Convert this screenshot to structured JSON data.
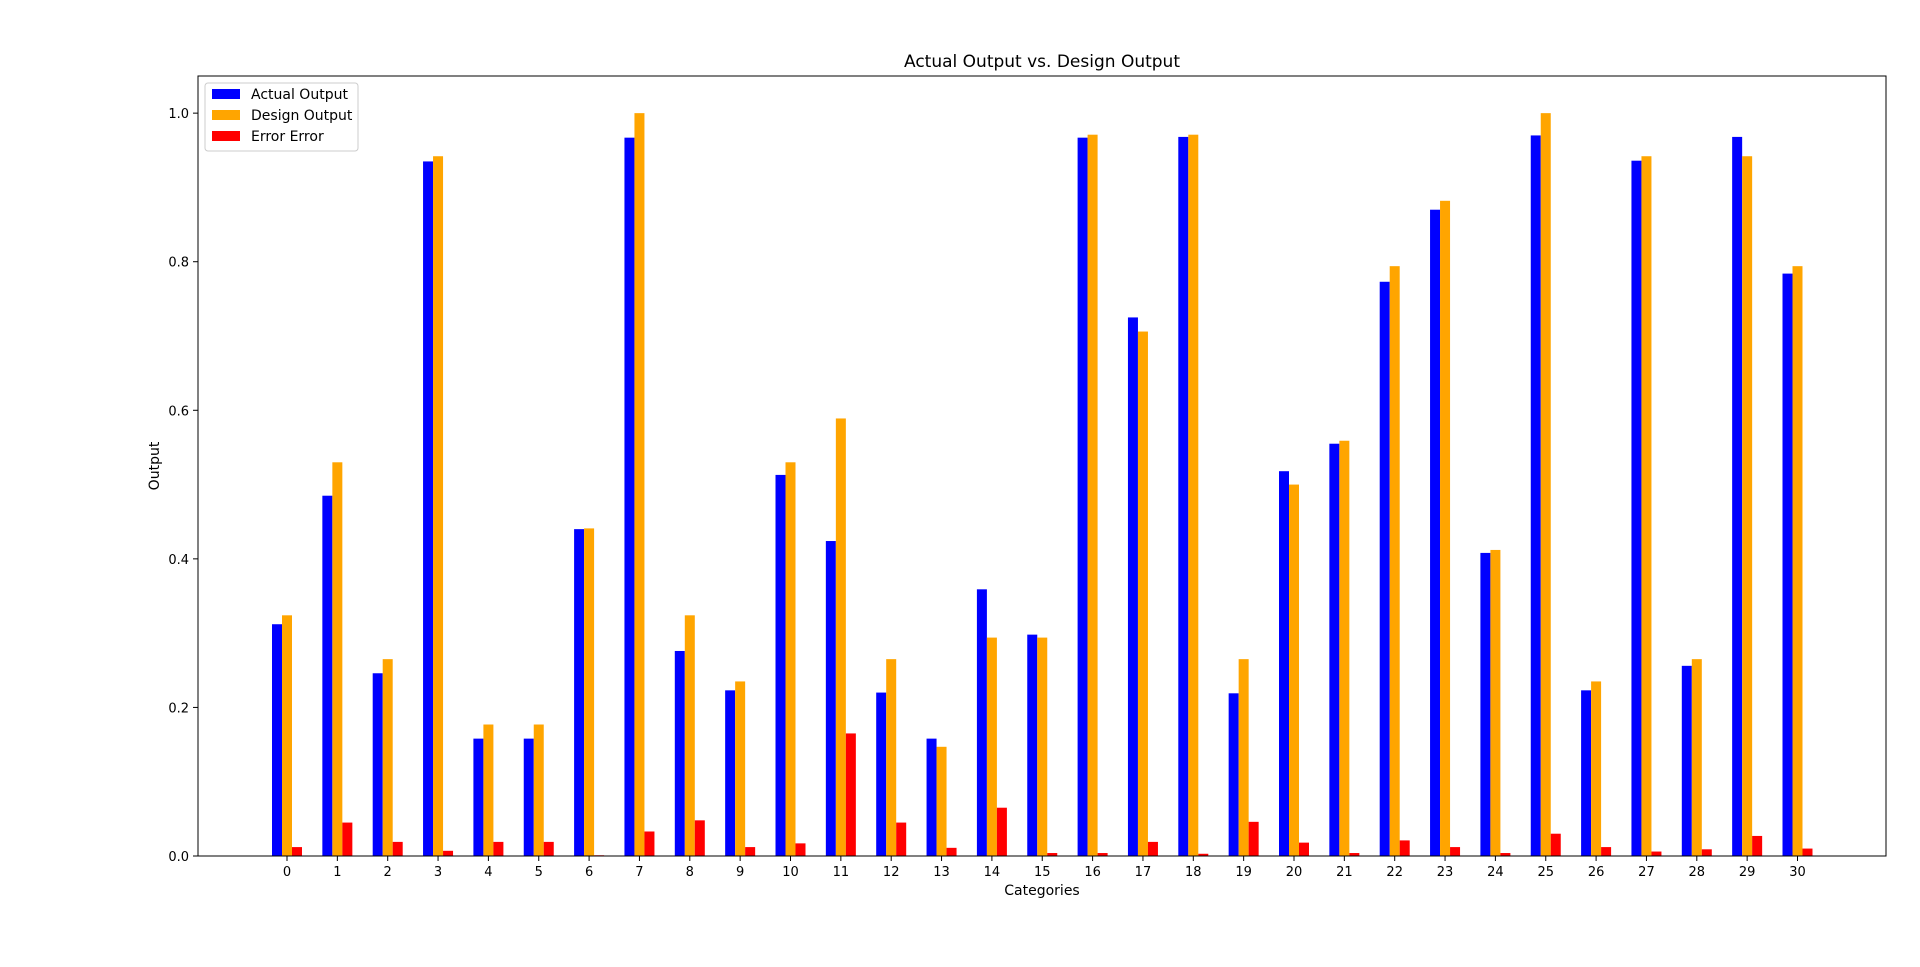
{
  "chart_data": {
    "type": "bar",
    "title": "Actual Output vs. Design Output",
    "xlabel": "Categories",
    "ylabel": "Output",
    "ylim": [
      0,
      1.05
    ],
    "yticks": [
      "0.0",
      "0.2",
      "0.4",
      "0.6",
      "0.8",
      "1.0"
    ],
    "categories": [
      "0",
      "1",
      "2",
      "3",
      "4",
      "5",
      "6",
      "7",
      "8",
      "9",
      "10",
      "11",
      "12",
      "13",
      "14",
      "15",
      "16",
      "17",
      "18",
      "19",
      "20",
      "21",
      "22",
      "23",
      "24",
      "25",
      "26",
      "27",
      "28",
      "29",
      "30"
    ],
    "legend_position": "upper-left",
    "grid": false,
    "series": [
      {
        "name": "Actual Output",
        "color": "#0000ff",
        "values": [
          0.312,
          0.485,
          0.246,
          0.935,
          0.158,
          0.158,
          0.44,
          0.967,
          0.276,
          0.223,
          0.513,
          0.424,
          0.22,
          0.158,
          0.359,
          0.298,
          0.967,
          0.725,
          0.968,
          0.219,
          0.518,
          0.555,
          0.773,
          0.87,
          0.408,
          0.97,
          0.223,
          0.936,
          0.256,
          0.968,
          0.784
        ]
      },
      {
        "name": "Design Output",
        "color": "#ffa500",
        "values": [
          0.324,
          0.53,
          0.265,
          0.942,
          0.177,
          0.177,
          0.441,
          1.0,
          0.324,
          0.235,
          0.53,
          0.589,
          0.265,
          0.147,
          0.294,
          0.294,
          0.971,
          0.706,
          0.971,
          0.265,
          0.5,
          0.559,
          0.794,
          0.882,
          0.412,
          1.0,
          0.235,
          0.942,
          0.265,
          0.942,
          0.794
        ]
      },
      {
        "name": "Error Error",
        "color": "#ff0000",
        "values": [
          0.012,
          0.045,
          0.019,
          0.007,
          0.019,
          0.019,
          0.001,
          0.033,
          0.048,
          0.012,
          0.017,
          0.165,
          0.045,
          0.011,
          0.065,
          0.004,
          0.004,
          0.019,
          0.003,
          0.046,
          0.018,
          0.004,
          0.021,
          0.012,
          0.004,
          0.03,
          0.012,
          0.006,
          0.009,
          0.027,
          0.01
        ]
      }
    ]
  }
}
